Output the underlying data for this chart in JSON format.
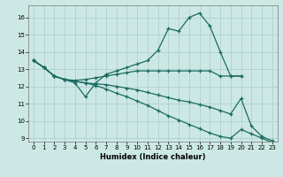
{
  "xlabel": "Humidex (Indice chaleur)",
  "bg_color": "#cce8e4",
  "grid_color": "#aaccca",
  "line_color": "#1a6b60",
  "xlim": [
    -0.5,
    23.5
  ],
  "ylim": [
    8.8,
    16.7
  ],
  "yticks": [
    9,
    10,
    11,
    12,
    13,
    14,
    15,
    16
  ],
  "xticks": [
    0,
    1,
    2,
    3,
    4,
    5,
    6,
    7,
    8,
    9,
    10,
    11,
    12,
    13,
    14,
    15,
    16,
    17,
    18,
    19,
    20,
    21,
    22,
    23
  ],
  "line1_x": [
    0,
    1,
    2,
    3,
    4,
    5,
    6,
    7,
    8,
    9,
    10,
    11,
    12,
    13,
    14,
    15,
    16,
    17,
    18,
    19,
    20
  ],
  "line1_y": [
    13.5,
    13.1,
    12.6,
    12.4,
    12.2,
    11.4,
    12.2,
    12.7,
    12.9,
    13.1,
    13.3,
    13.5,
    14.1,
    15.35,
    15.2,
    16.0,
    16.25,
    15.5,
    14.0,
    12.6,
    12.6
  ],
  "line2_x": [
    0,
    1,
    2,
    3,
    4,
    5,
    6,
    7,
    8,
    9,
    10,
    11,
    12,
    13,
    14,
    15,
    16,
    17,
    18,
    19,
    20
  ],
  "line2_y": [
    13.5,
    13.1,
    12.6,
    12.4,
    12.35,
    12.4,
    12.5,
    12.6,
    12.7,
    12.8,
    12.9,
    12.9,
    12.9,
    12.9,
    12.9,
    12.9,
    12.9,
    12.9,
    12.6,
    12.6,
    12.6
  ],
  "line3_x": [
    0,
    1,
    2,
    3,
    4,
    5,
    6,
    7,
    8,
    9,
    10,
    11,
    12,
    13,
    14,
    15,
    16,
    17,
    18,
    19,
    20,
    21,
    22,
    23
  ],
  "line3_y": [
    13.5,
    13.1,
    12.6,
    12.4,
    12.3,
    12.2,
    12.15,
    12.1,
    12.0,
    11.9,
    11.8,
    11.65,
    11.5,
    11.35,
    11.2,
    11.1,
    10.95,
    10.8,
    10.6,
    10.4,
    11.3,
    9.7,
    9.1,
    8.85
  ],
  "line4_x": [
    0,
    1,
    2,
    3,
    4,
    5,
    6,
    7,
    8,
    9,
    10,
    11,
    12,
    13,
    14,
    15,
    16,
    17,
    18,
    19,
    20,
    21,
    22,
    23
  ],
  "line4_y": [
    13.5,
    13.1,
    12.6,
    12.4,
    12.3,
    12.2,
    12.05,
    11.85,
    11.6,
    11.4,
    11.15,
    10.9,
    10.6,
    10.3,
    10.05,
    9.8,
    9.55,
    9.3,
    9.1,
    9.0,
    9.5,
    9.25,
    9.0,
    8.75
  ]
}
